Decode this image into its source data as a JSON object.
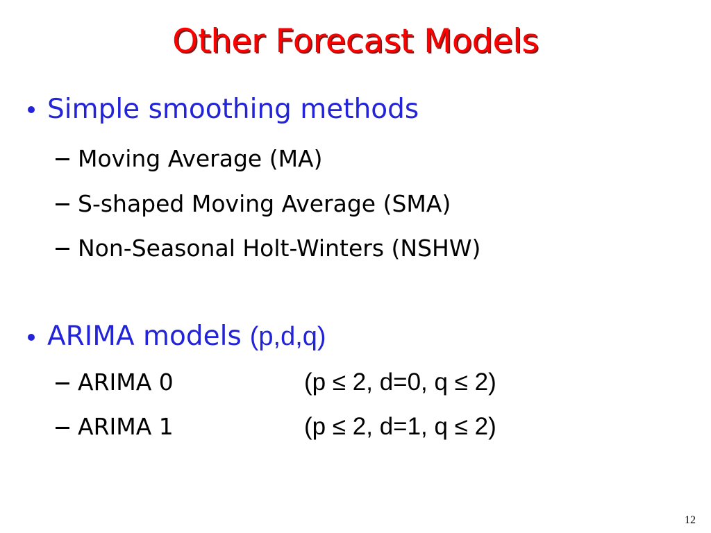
{
  "title": "Other Forecast Models",
  "sections": [
    {
      "heading": "Simple smoothing methods",
      "items": [
        {
          "label": "Moving Average (MA)"
        },
        {
          "label": "S-shaped Moving Average (SMA)"
        },
        {
          "label": "Non-Seasonal Holt-Winters (NSHW)"
        }
      ]
    },
    {
      "heading": "ARIMA models",
      "heading_note": "(p,d,q)",
      "items": [
        {
          "label": "ARIMA 0",
          "note": "(p ≤ 2, d=0, q ≤ 2)"
        },
        {
          "label": "ARIMA 1",
          "note": "(p ≤ 2, d=1, q ≤ 2)"
        }
      ]
    }
  ],
  "page_number": 12
}
